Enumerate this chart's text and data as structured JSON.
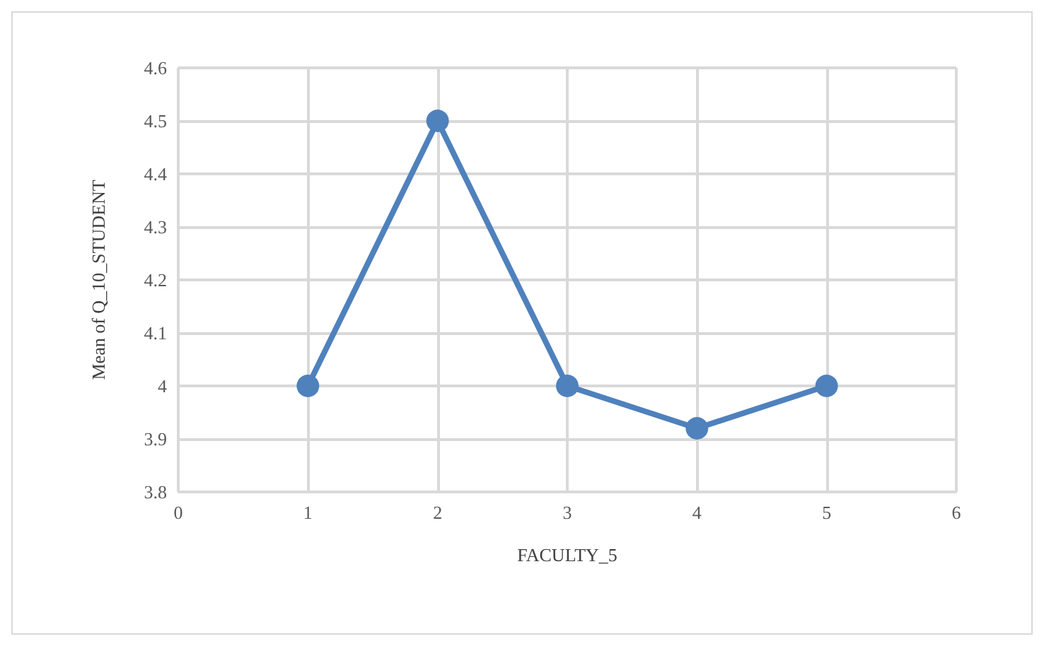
{
  "chart_data": {
    "type": "line",
    "xlabel": "FACULTY_5",
    "ylabel": "Mean of Q_10_STUDENT",
    "x": [
      1,
      2,
      3,
      4,
      5
    ],
    "series": [
      {
        "color": "#4f81bd",
        "values": [
          4,
          4.5,
          4,
          3.92,
          4
        ]
      }
    ],
    "xlim": [
      0,
      6
    ],
    "xticks": [
      0,
      1,
      2,
      3,
      4,
      5,
      6
    ],
    "ylim": [
      3.8,
      4.6
    ],
    "yticks": [
      3.8,
      3.9,
      4,
      4.1,
      4.2,
      4.3,
      4.4,
      4.5,
      4.6
    ],
    "grid": true,
    "marker": "circle",
    "line_style": "solid"
  }
}
